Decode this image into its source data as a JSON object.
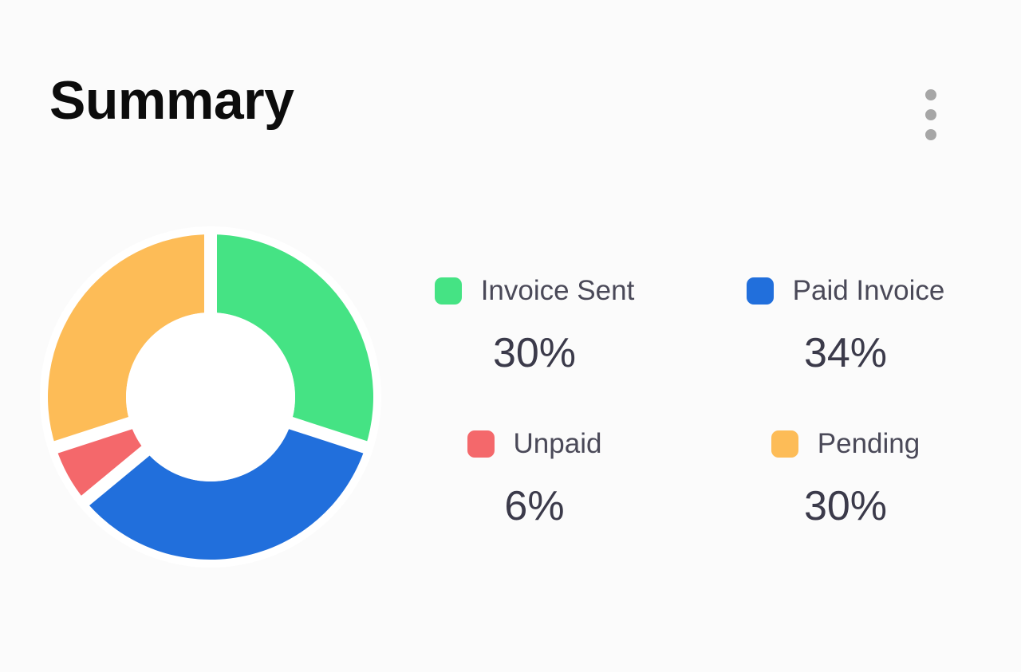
{
  "card": {
    "title": "Summary",
    "menu_icon": "more-vertical-icon"
  },
  "chart_data": {
    "type": "pie",
    "variant": "donut",
    "title": "",
    "series": [
      {
        "name": "Invoice Sent",
        "value": 30,
        "label": "30%",
        "color": "#45e384"
      },
      {
        "name": "Paid Invoice",
        "value": 34,
        "label": "34%",
        "color": "#216fdc"
      },
      {
        "name": "Unpaid",
        "value": 6,
        "label": "6%",
        "color": "#f4686b"
      },
      {
        "name": "Pending",
        "value": 30,
        "label": "30%",
        "color": "#fdbc57"
      }
    ],
    "start_angle_deg": 0,
    "direction": "clockwise",
    "legend_position": "right"
  }
}
